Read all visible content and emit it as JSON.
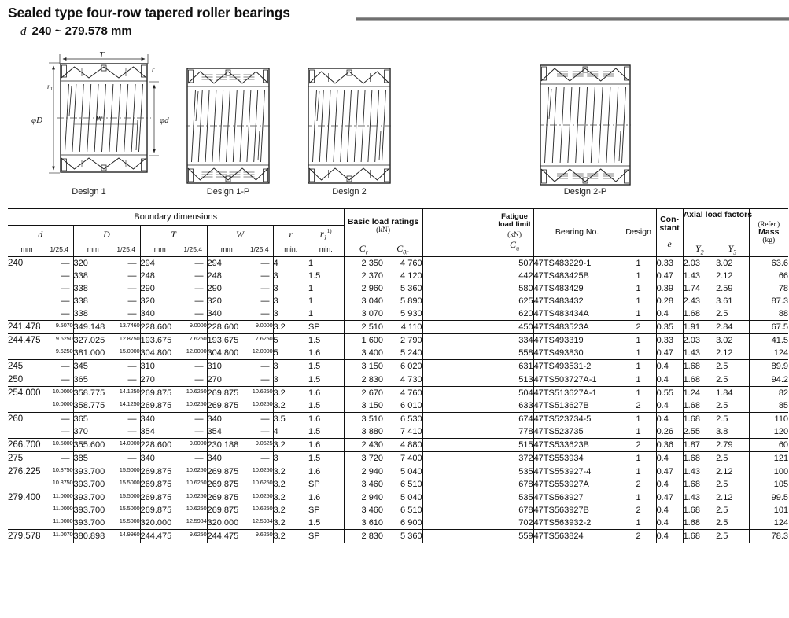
{
  "page": {
    "title": "Sealed type four-row tapered roller bearings",
    "subtitle_symbol": "d",
    "subtitle_range": "240 ~ 279.578 mm"
  },
  "diagrams": {
    "labels": [
      "Design 1",
      "Design 1-P",
      "Design 2",
      "Design 2-P"
    ],
    "dims": {
      "T": "T",
      "r": "r",
      "r1_base": "r",
      "r1_sub": "1",
      "W": "W",
      "phiD": "φD",
      "phid": "φd"
    }
  },
  "table": {
    "headers": {
      "boundary": "Boundary dimensions",
      "basic_line1": "Basic load ratings",
      "basic_line2": "(kN)",
      "fatigue_line1": "Fatigue",
      "fatigue_line2": "load limit",
      "fatigue_line3": "(kN)",
      "bearing_no": "Bearing No.",
      "design": "Design",
      "constant_line1": "Con-",
      "constant_line2": "stant",
      "axial": "Axial load factors",
      "refer": "(Refer.)",
      "mass": "Mass",
      "mass_unit": "(kg)",
      "mm": "mm",
      "inch": "1/25.4",
      "min": "min.",
      "sym": {
        "d": "d",
        "D": "D",
        "T": "T",
        "W": "W",
        "r": "r",
        "r1_base": "r",
        "r1_sub": "1",
        "r1_sup": "1)",
        "cr_base": "C",
        "cr_sub": "r",
        "cor_base": "C",
        "cor_sub": "0r",
        "cu_base": "C",
        "cu_sub": "u",
        "e": "e",
        "y2_base": "Y",
        "y2_sub": "2",
        "y3_base": "Y",
        "y3_sub": "3"
      }
    },
    "groups": [
      {
        "gap_before_rows": [
          3
        ],
        "rows": [
          [
            "240",
            "—",
            "320",
            "—",
            "294",
            "—",
            "294",
            "—",
            "4",
            "1",
            "2 350",
            "4 760",
            "507",
            "47TS483229-1",
            "1",
            "0.33",
            "2.03",
            "3.02",
            "63.6"
          ],
          [
            "",
            "—",
            "338",
            "—",
            "248",
            "—",
            "248",
            "—",
            "3",
            "1.5",
            "2 370",
            "4 120",
            "442",
            "47TS483425B",
            "1",
            "0.47",
            "1.43",
            "2.12",
            "66"
          ],
          [
            "",
            "—",
            "338",
            "—",
            "290",
            "—",
            "290",
            "—",
            "3",
            "1",
            "2 960",
            "5 360",
            "580",
            "47TS483429",
            "1",
            "0.39",
            "1.74",
            "2.59",
            "78"
          ],
          [
            "",
            "—",
            "338",
            "—",
            "320",
            "—",
            "320",
            "—",
            "3",
            "1",
            "3 040",
            "5 890",
            "625",
            "47TS483432",
            "1",
            "0.28",
            "2.43",
            "3.61",
            "87.3"
          ],
          [
            "",
            "—",
            "338",
            "—",
            "340",
            "—",
            "340",
            "—",
            "3",
            "1",
            "3 070",
            "5 930",
            "620",
            "47TS483434A",
            "1",
            "0.4",
            "1.68",
            "2.5",
            "88"
          ]
        ]
      },
      {
        "rows": [
          [
            "241.478",
            "9.5070",
            "349.148",
            "13.7460",
            "228.600",
            "9.0000",
            "228.600",
            "9.0000",
            "3.2",
            "SP",
            "2 510",
            "4 110",
            "450",
            "47TS483523A",
            "2",
            "0.35",
            "1.91",
            "2.84",
            "67.5"
          ]
        ]
      },
      {
        "rows": [
          [
            "244.475",
            "9.6250",
            "327.025",
            "12.8750",
            "193.675",
            "7.6250",
            "193.675",
            "7.6250",
            "5",
            "1.5",
            "1 600",
            "2 790",
            "334",
            "47TS493319",
            "1",
            "0.33",
            "2.03",
            "3.02",
            "41.5"
          ],
          [
            "",
            "9.6250",
            "381.000",
            "15.0000",
            "304.800",
            "12.0000",
            "304.800",
            "12.0000",
            "5",
            "1.6",
            "3 400",
            "5 240",
            "558",
            "47TS493830",
            "1",
            "0.47",
            "1.43",
            "2.12",
            "124"
          ]
        ]
      },
      {
        "rows": [
          [
            "245",
            "—",
            "345",
            "—",
            "310",
            "—",
            "310",
            "—",
            "3",
            "1.5",
            "3 150",
            "6 020",
            "631",
            "47TS493531-2",
            "1",
            "0.4",
            "1.68",
            "2.5",
            "89.9"
          ]
        ]
      },
      {
        "rows": [
          [
            "250",
            "—",
            "365",
            "—",
            "270",
            "—",
            "270",
            "—",
            "3",
            "1.5",
            "2 830",
            "4 730",
            "513",
            "47TS503727A-1",
            "1",
            "0.4",
            "1.68",
            "2.5",
            "94.2"
          ]
        ]
      },
      {
        "rows": [
          [
            "254.000",
            "10.0000",
            "358.775",
            "14.1250",
            "269.875",
            "10.6250",
            "269.875",
            "10.6250",
            "3.2",
            "1.6",
            "2 670",
            "4 760",
            "504",
            "47TS513627A-1",
            "1",
            "0.55",
            "1.24",
            "1.84",
            "82"
          ],
          [
            "",
            "10.0000",
            "358.775",
            "14.1250",
            "269.875",
            "10.6250",
            "269.875",
            "10.6250",
            "3.2",
            "1.5",
            "3 150",
            "6 010",
            "633",
            "47TS513627B",
            "2",
            "0.4",
            "1.68",
            "2.5",
            "85"
          ]
        ]
      },
      {
        "rows": [
          [
            "260",
            "—",
            "365",
            "—",
            "340",
            "—",
            "340",
            "—",
            "3.5",
            "1.6",
            "3 510",
            "6 530",
            "674",
            "47TS523734-5",
            "1",
            "0.4",
            "1.68",
            "2.5",
            "110"
          ],
          [
            "",
            "—",
            "370",
            "—",
            "354",
            "—",
            "354",
            "—",
            "4",
            "1.5",
            "3 880",
            "7 410",
            "778",
            "47TS523735",
            "1",
            "0.26",
            "2.55",
            "3.8",
            "120"
          ]
        ]
      },
      {
        "rows": [
          [
            "266.700",
            "10.5000",
            "355.600",
            "14.0000",
            "228.600",
            "9.0000",
            "230.188",
            "9.0625",
            "3.2",
            "1.6",
            "2 430",
            "4 880",
            "515",
            "47TS533623B",
            "2",
            "0.36",
            "1.87",
            "2.79",
            "60"
          ]
        ]
      },
      {
        "rows": [
          [
            "275",
            "—",
            "385",
            "—",
            "340",
            "—",
            "340",
            "—",
            "3",
            "1.5",
            "3 720",
            "7 400",
            "372",
            "47TS553934",
            "1",
            "0.4",
            "1.68",
            "2.5",
            "121"
          ]
        ]
      },
      {
        "rows": [
          [
            "276.225",
            "10.8750",
            "393.700",
            "15.5000",
            "269.875",
            "10.6250",
            "269.875",
            "10.6250",
            "3.2",
            "1.6",
            "2 940",
            "5 040",
            "535",
            "47TS553927-4",
            "1",
            "0.47",
            "1.43",
            "2.12",
            "100"
          ],
          [
            "",
            "10.8750",
            "393.700",
            "15.5000",
            "269.875",
            "10.6250",
            "269.875",
            "10.6250",
            "3.2",
            "SP",
            "3 460",
            "6 510",
            "678",
            "47TS553927A",
            "2",
            "0.4",
            "1.68",
            "2.5",
            "105"
          ]
        ]
      },
      {
        "rows": [
          [
            "279.400",
            "11.0000",
            "393.700",
            "15.5000",
            "269.875",
            "10.6250",
            "269.875",
            "10.6250",
            "3.2",
            "1.6",
            "2 940",
            "5 040",
            "535",
            "47TS563927",
            "1",
            "0.47",
            "1.43",
            "2.12",
            "99.5"
          ],
          [
            "",
            "11.0000",
            "393.700",
            "15.5000",
            "269.875",
            "10.6250",
            "269.875",
            "10.6250",
            "3.2",
            "SP",
            "3 460",
            "6 510",
            "678",
            "47TS563927B",
            "2",
            "0.4",
            "1.68",
            "2.5",
            "101"
          ],
          [
            "",
            "11.0000",
            "393.700",
            "15.5000",
            "320.000",
            "12.5984",
            "320.000",
            "12.5984",
            "3.2",
            "1.5",
            "3 610",
            "6 900",
            "702",
            "47TS563932-2",
            "1",
            "0.4",
            "1.68",
            "2.5",
            "124"
          ]
        ]
      },
      {
        "rows": [
          [
            "279.578",
            "11.0070",
            "380.898",
            "14.9960",
            "244.475",
            "9.6250",
            "244.475",
            "9.6250",
            "3.2",
            "SP",
            "2 830",
            "5 360",
            "559",
            "47TS563824",
            "2",
            "0.4",
            "1.68",
            "2.5",
            "78.3"
          ]
        ]
      }
    ]
  }
}
